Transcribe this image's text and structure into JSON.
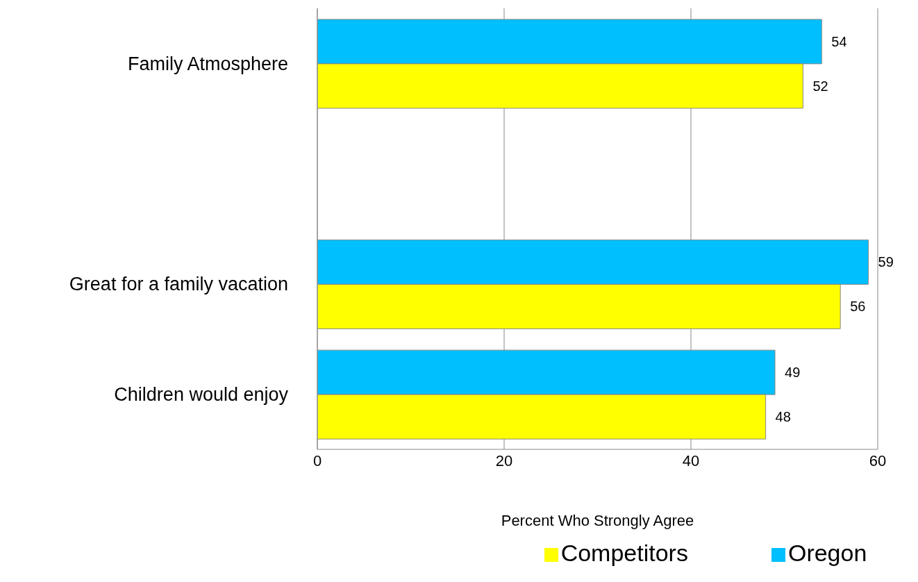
{
  "chart_data": {
    "type": "bar",
    "orientation": "horizontal",
    "xlabel": "Percent Who Strongly Agree",
    "categories": [
      "Family Atmosphere",
      null,
      "Great for a family vacation",
      "Children would enjoy"
    ],
    "series": [
      {
        "name": "Oregon",
        "color": "#00bfff",
        "values": [
          54,
          null,
          59,
          49
        ]
      },
      {
        "name": "Competitors",
        "color": "#ffff00",
        "values": [
          52,
          null,
          56,
          48
        ]
      }
    ],
    "xlim": [
      0,
      60
    ],
    "xticks": [
      0,
      20,
      40,
      60
    ],
    "grid": "x",
    "legend": "bottom",
    "data_labels": true
  }
}
